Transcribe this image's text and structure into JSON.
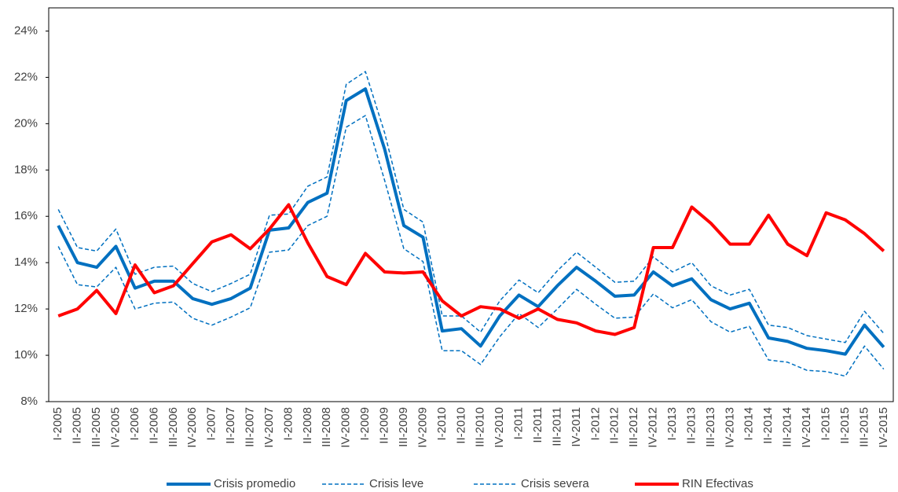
{
  "chart_data": {
    "type": "line",
    "categories": [
      "I-2005",
      "II-2005",
      "III-2005",
      "IV-2005",
      "I-2006",
      "II-2006",
      "III-2006",
      "IV-2006",
      "I-2007",
      "II-2007",
      "III-2007",
      "IV-2007",
      "I-2008",
      "II-2008",
      "III-2008",
      "IV-2008",
      "I-2009",
      "II-2009",
      "III-2009",
      "IV-2009",
      "I-2010",
      "II-2010",
      "III-2010",
      "IV-2010",
      "I-2011",
      "II-2011",
      "III-2011",
      "IV-2011",
      "I-2012",
      "II-2012",
      "III-2012",
      "IV-2012",
      "I-2013",
      "II-2013",
      "III-2013",
      "IV-2013",
      "I-2014",
      "II-2014",
      "III-2014",
      "IV-2014",
      "I-2015",
      "II-2015",
      "III-2015",
      "IV-2015"
    ],
    "series": [
      {
        "name": "Crisis promedio",
        "color": "#0070c0",
        "dashed": false,
        "values": [
          15.6,
          14.0,
          13.8,
          14.7,
          12.9,
          13.2,
          13.2,
          12.45,
          12.2,
          12.45,
          12.9,
          15.4,
          15.5,
          16.6,
          17.0,
          21.0,
          21.5,
          18.9,
          15.6,
          15.1,
          11.05,
          11.15,
          10.4,
          11.7,
          12.6,
          12.1,
          13.0,
          13.8,
          13.2,
          12.55,
          12.6,
          13.6,
          13.0,
          13.3,
          12.4,
          12.0,
          12.25,
          10.75,
          10.6,
          10.3,
          10.2,
          10.05,
          11.3,
          10.35
        ]
      },
      {
        "name": "Crisis leve",
        "color": "#0070c0",
        "dashed": true,
        "values": [
          14.7,
          13.05,
          12.95,
          13.8,
          12.0,
          12.25,
          12.3,
          11.6,
          11.3,
          11.65,
          12.05,
          14.45,
          14.55,
          15.6,
          16.0,
          19.85,
          20.35,
          17.55,
          14.6,
          14.05,
          10.2,
          10.2,
          9.6,
          10.8,
          11.8,
          11.2,
          12.0,
          12.85,
          12.2,
          11.6,
          11.65,
          12.65,
          12.05,
          12.4,
          11.45,
          11.0,
          11.25,
          9.8,
          9.7,
          9.35,
          9.3,
          9.1,
          10.4,
          9.4
        ]
      },
      {
        "name": "Crisis severa",
        "color": "#0070c0",
        "dashed": true,
        "values": [
          16.3,
          14.65,
          14.5,
          15.45,
          13.5,
          13.8,
          13.85,
          13.1,
          12.75,
          13.1,
          13.5,
          16.05,
          16.1,
          17.3,
          17.7,
          21.7,
          22.25,
          19.6,
          16.3,
          15.75,
          11.7,
          11.7,
          11.0,
          12.35,
          13.25,
          12.7,
          13.65,
          14.45,
          13.8,
          13.15,
          13.2,
          14.25,
          13.6,
          14.0,
          13.0,
          12.6,
          12.85,
          11.3,
          11.2,
          10.85,
          10.7,
          10.55,
          11.9,
          10.95
        ]
      },
      {
        "name": "RIN Efectivas",
        "color": "#ff0000",
        "dashed": false,
        "values": [
          11.7,
          12.0,
          12.8,
          11.8,
          13.9,
          12.7,
          13.0,
          13.95,
          14.9,
          15.2,
          14.6,
          15.45,
          16.5,
          14.85,
          13.4,
          13.05,
          14.4,
          13.6,
          13.55,
          13.6,
          12.35,
          11.7,
          12.1,
          12.0,
          11.6,
          12.0,
          11.55,
          11.4,
          11.05,
          10.9,
          11.2,
          14.65,
          14.65,
          16.4,
          15.7,
          14.8,
          14.8,
          16.05,
          14.8,
          14.3,
          16.15,
          15.85,
          15.25,
          14.5
        ]
      }
    ],
    "ylim": [
      8,
      25
    ],
    "yticks": [
      {
        "value": 8,
        "label": "8%"
      },
      {
        "value": 10,
        "label": "10%"
      },
      {
        "value": 12,
        "label": "12%"
      },
      {
        "value": 14,
        "label": "14%"
      },
      {
        "value": 16,
        "label": "16%"
      },
      {
        "value": 18,
        "label": "18%"
      },
      {
        "value": 20,
        "label": "20%"
      },
      {
        "value": 22,
        "label": "22%"
      },
      {
        "value": 24,
        "label": "24%"
      }
    ],
    "grid": false,
    "legend": "bottom"
  }
}
